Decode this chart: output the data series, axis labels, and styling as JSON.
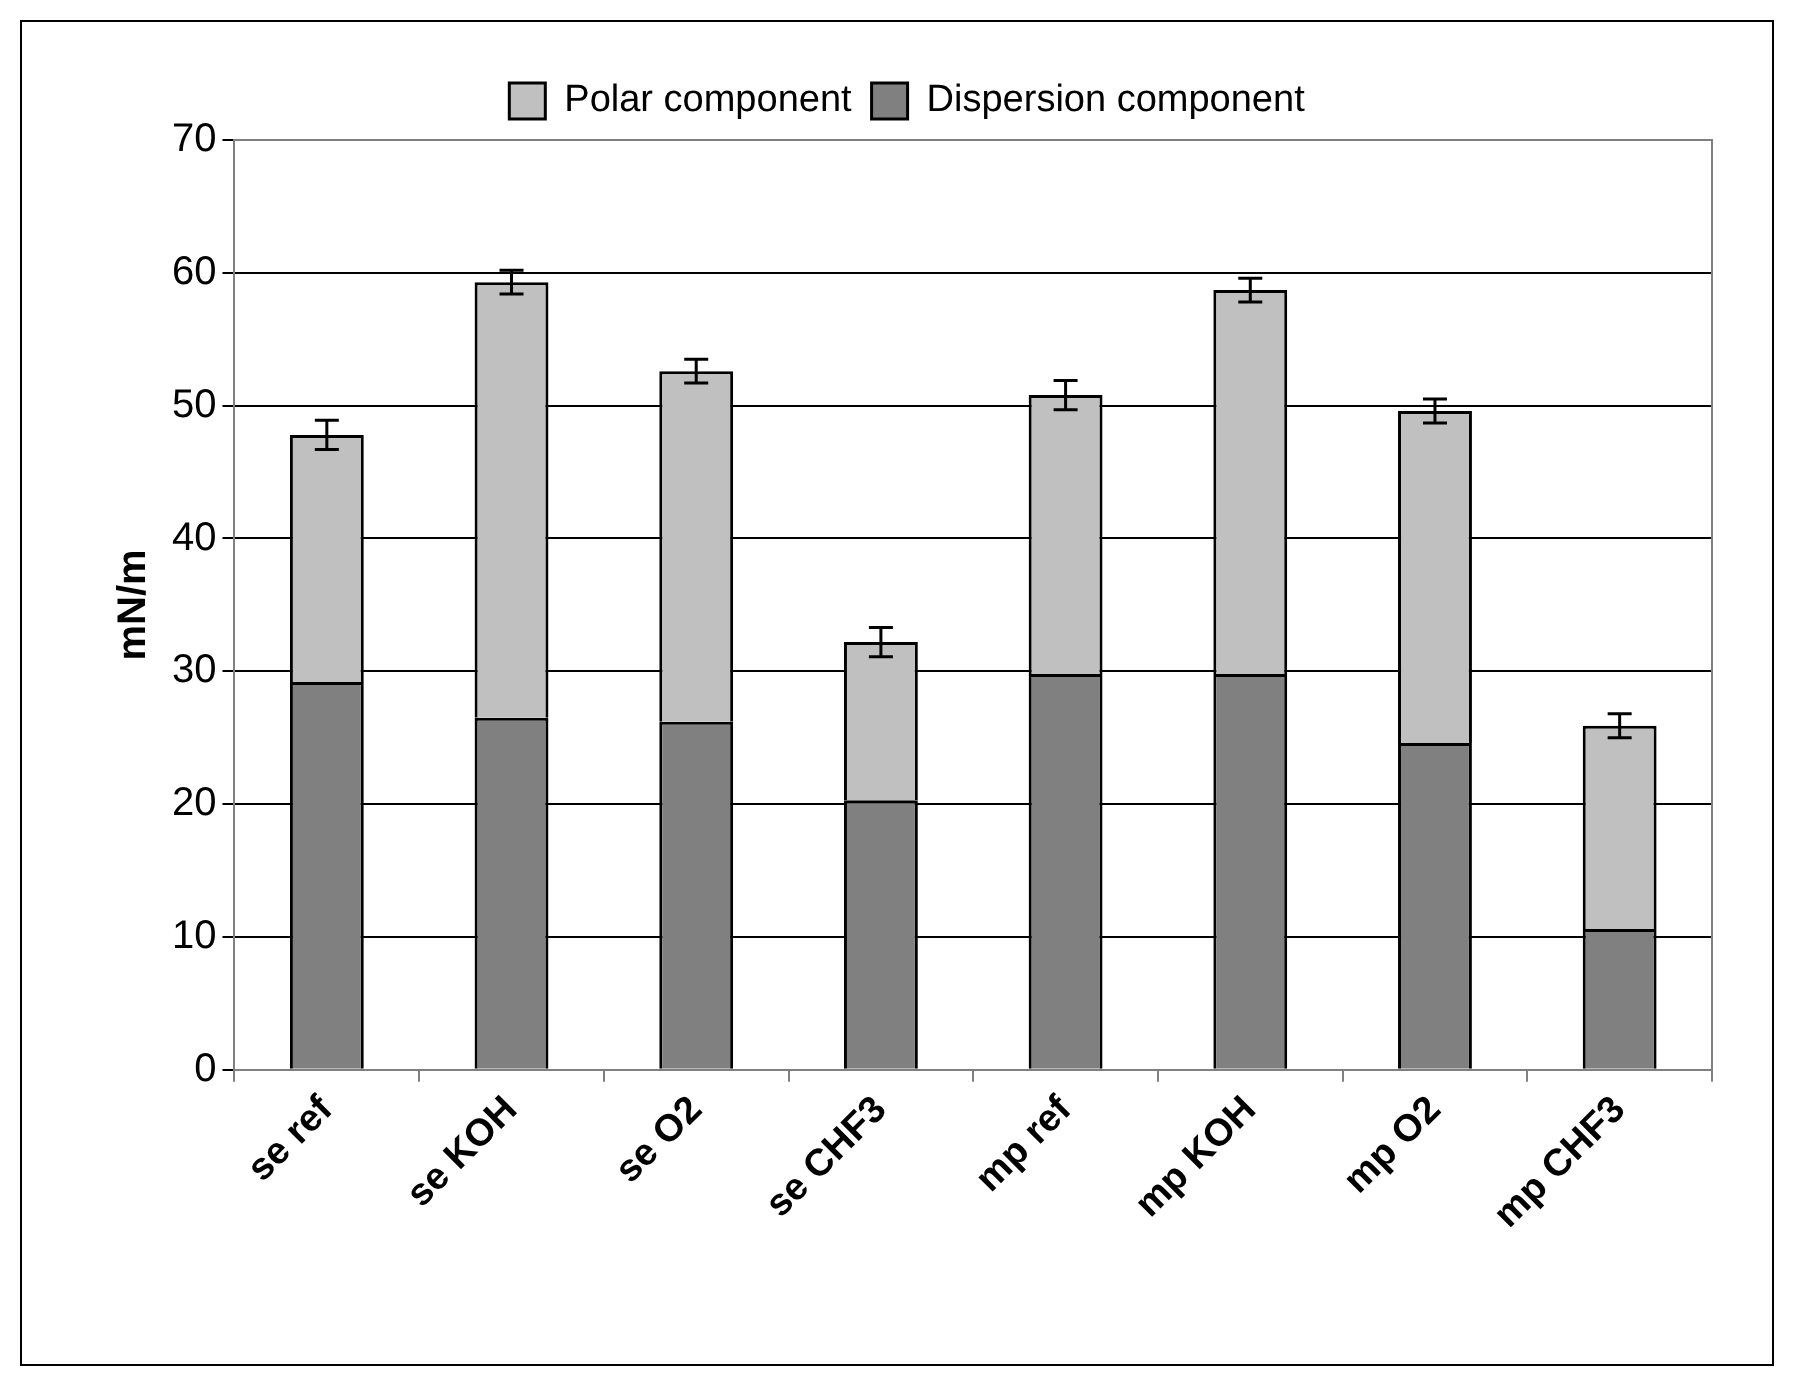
{
  "chart_data": {
    "type": "bar",
    "stacked": true,
    "ylabel": "mN/m",
    "categories": [
      "se ref",
      "se KOH",
      "se O2",
      "se CHF3",
      "mp ref",
      "mp KOH",
      "mp O2",
      "mp CHF3"
    ],
    "series": [
      {
        "name": "Dispersion component",
        "color": "#808080",
        "values": [
          29.2,
          26.5,
          26.2,
          20.3,
          29.8,
          29.8,
          24.6,
          10.6
        ]
      },
      {
        "name": "Polar component",
        "color": "#c0c0c0",
        "values": [
          18.6,
          32.8,
          26.4,
          11.9,
          21.0,
          28.9,
          25.0,
          15.3
        ],
        "errors": [
          1.1,
          0.9,
          0.9,
          1.1,
          1.1,
          0.9,
          0.9,
          0.9
        ]
      }
    ],
    "ylim": [
      0,
      70
    ],
    "yticks": [
      0,
      10,
      20,
      30,
      40,
      50,
      60,
      70
    ],
    "grid": "y",
    "legend": "top"
  }
}
